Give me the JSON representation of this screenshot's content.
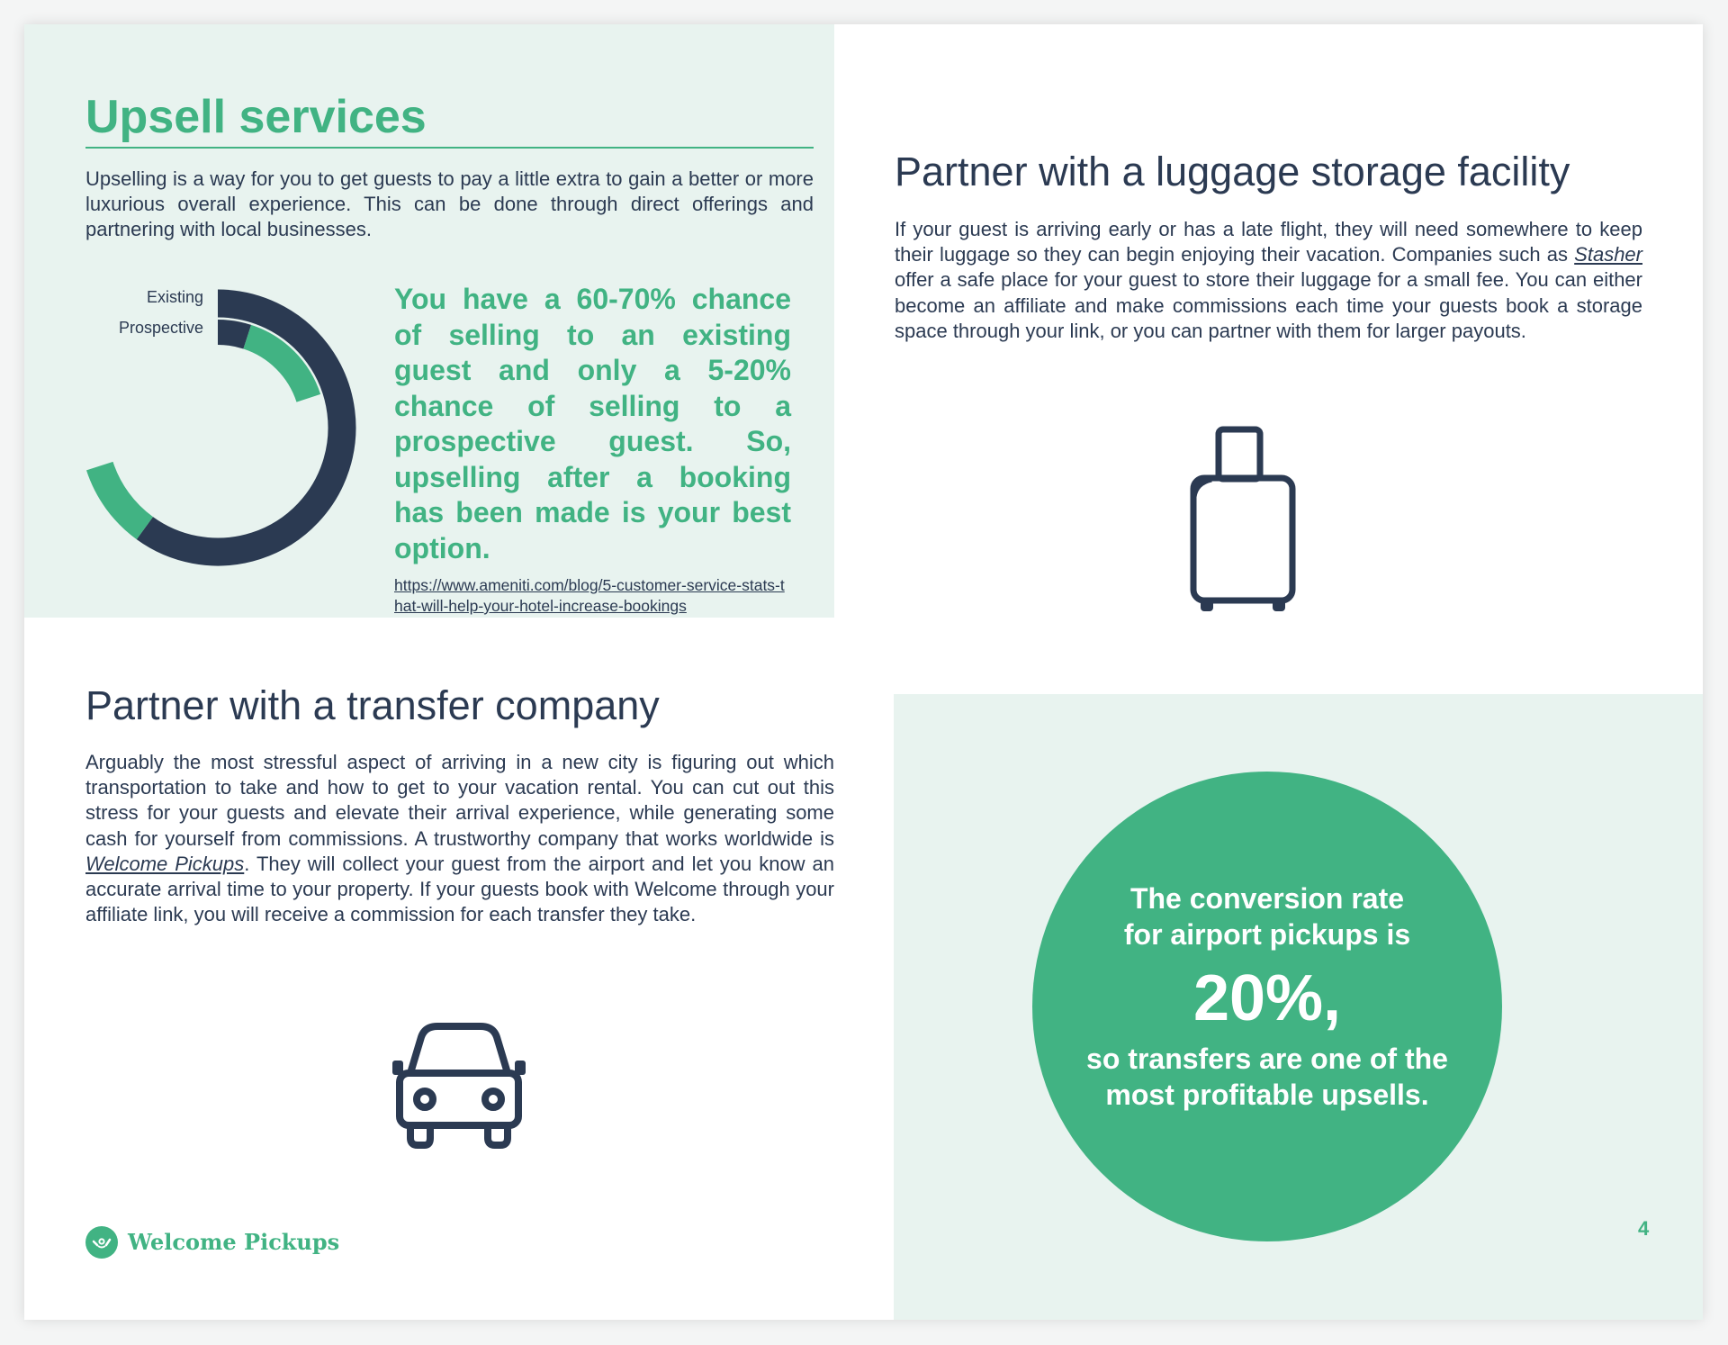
{
  "upsell": {
    "title": "Upsell services",
    "intro": "Upselling is a way for you to get guests to pay a little extra to gain a better or more luxurious overall experience. This can be done through direct offerings and partnering with local businesses.",
    "chart": {
      "labels": [
        "Existing",
        "Prospective"
      ],
      "existing_range_percent": [
        60,
        70
      ],
      "prospective_range_percent": [
        5,
        20
      ],
      "colors": {
        "base": "#2b3a52",
        "highlight": "#41b383"
      }
    },
    "highlight": "You have a 60-70% chance of selling to an existing guest and only a 5-20% chance of selling to a prospective guest. So, upselling after a booking has been made is your best option.",
    "source_link": "https://www.ameniti.com/blog/5-customer-service-stats-that-will-help-your-hotel-increase-bookings"
  },
  "luggage": {
    "title": "Partner with a luggage storage facility",
    "text_before": "If your guest is arriving early or has a late flight, they will need somewhere to keep their luggage so they can begin enjoying their vacation. Companies such as ",
    "link": "Stasher",
    "text_after": " offer a safe place for your guest to store their luggage for a small fee. You can either become an affiliate and make commissions each time your guests book a storage space through your link, or you can partner with them for larger payouts.",
    "icon": "suitcase-icon"
  },
  "transfer": {
    "title": "Partner with a transfer company",
    "text_before": "Arguably the most stressful aspect of arriving in a new city is figuring out which transportation to take and how to get to your vacation rental. You can cut out this stress for your guests and elevate their arrival experience, while generating some cash for yourself from commissions. A trustworthy company that works worldwide is ",
    "link": "Welcome Pickups",
    "text_after": ". They will collect your guest from the airport and let you know an accurate arrival time to your property. If your guests book with Welcome through your affiliate link, you will receive a commission for each transfer they take.",
    "icon": "car-icon"
  },
  "stat": {
    "line1": "The conversion rate",
    "line2": "for airport pickups is",
    "value": "20%,",
    "line3": "so transfers are one of the",
    "line4": "most profitable upsells."
  },
  "footer": {
    "brand": "Welcome Pickups",
    "page_number": "4"
  },
  "colors": {
    "green": "#41b383",
    "navy": "#2b3a52",
    "mint": "#e8f3ef"
  }
}
